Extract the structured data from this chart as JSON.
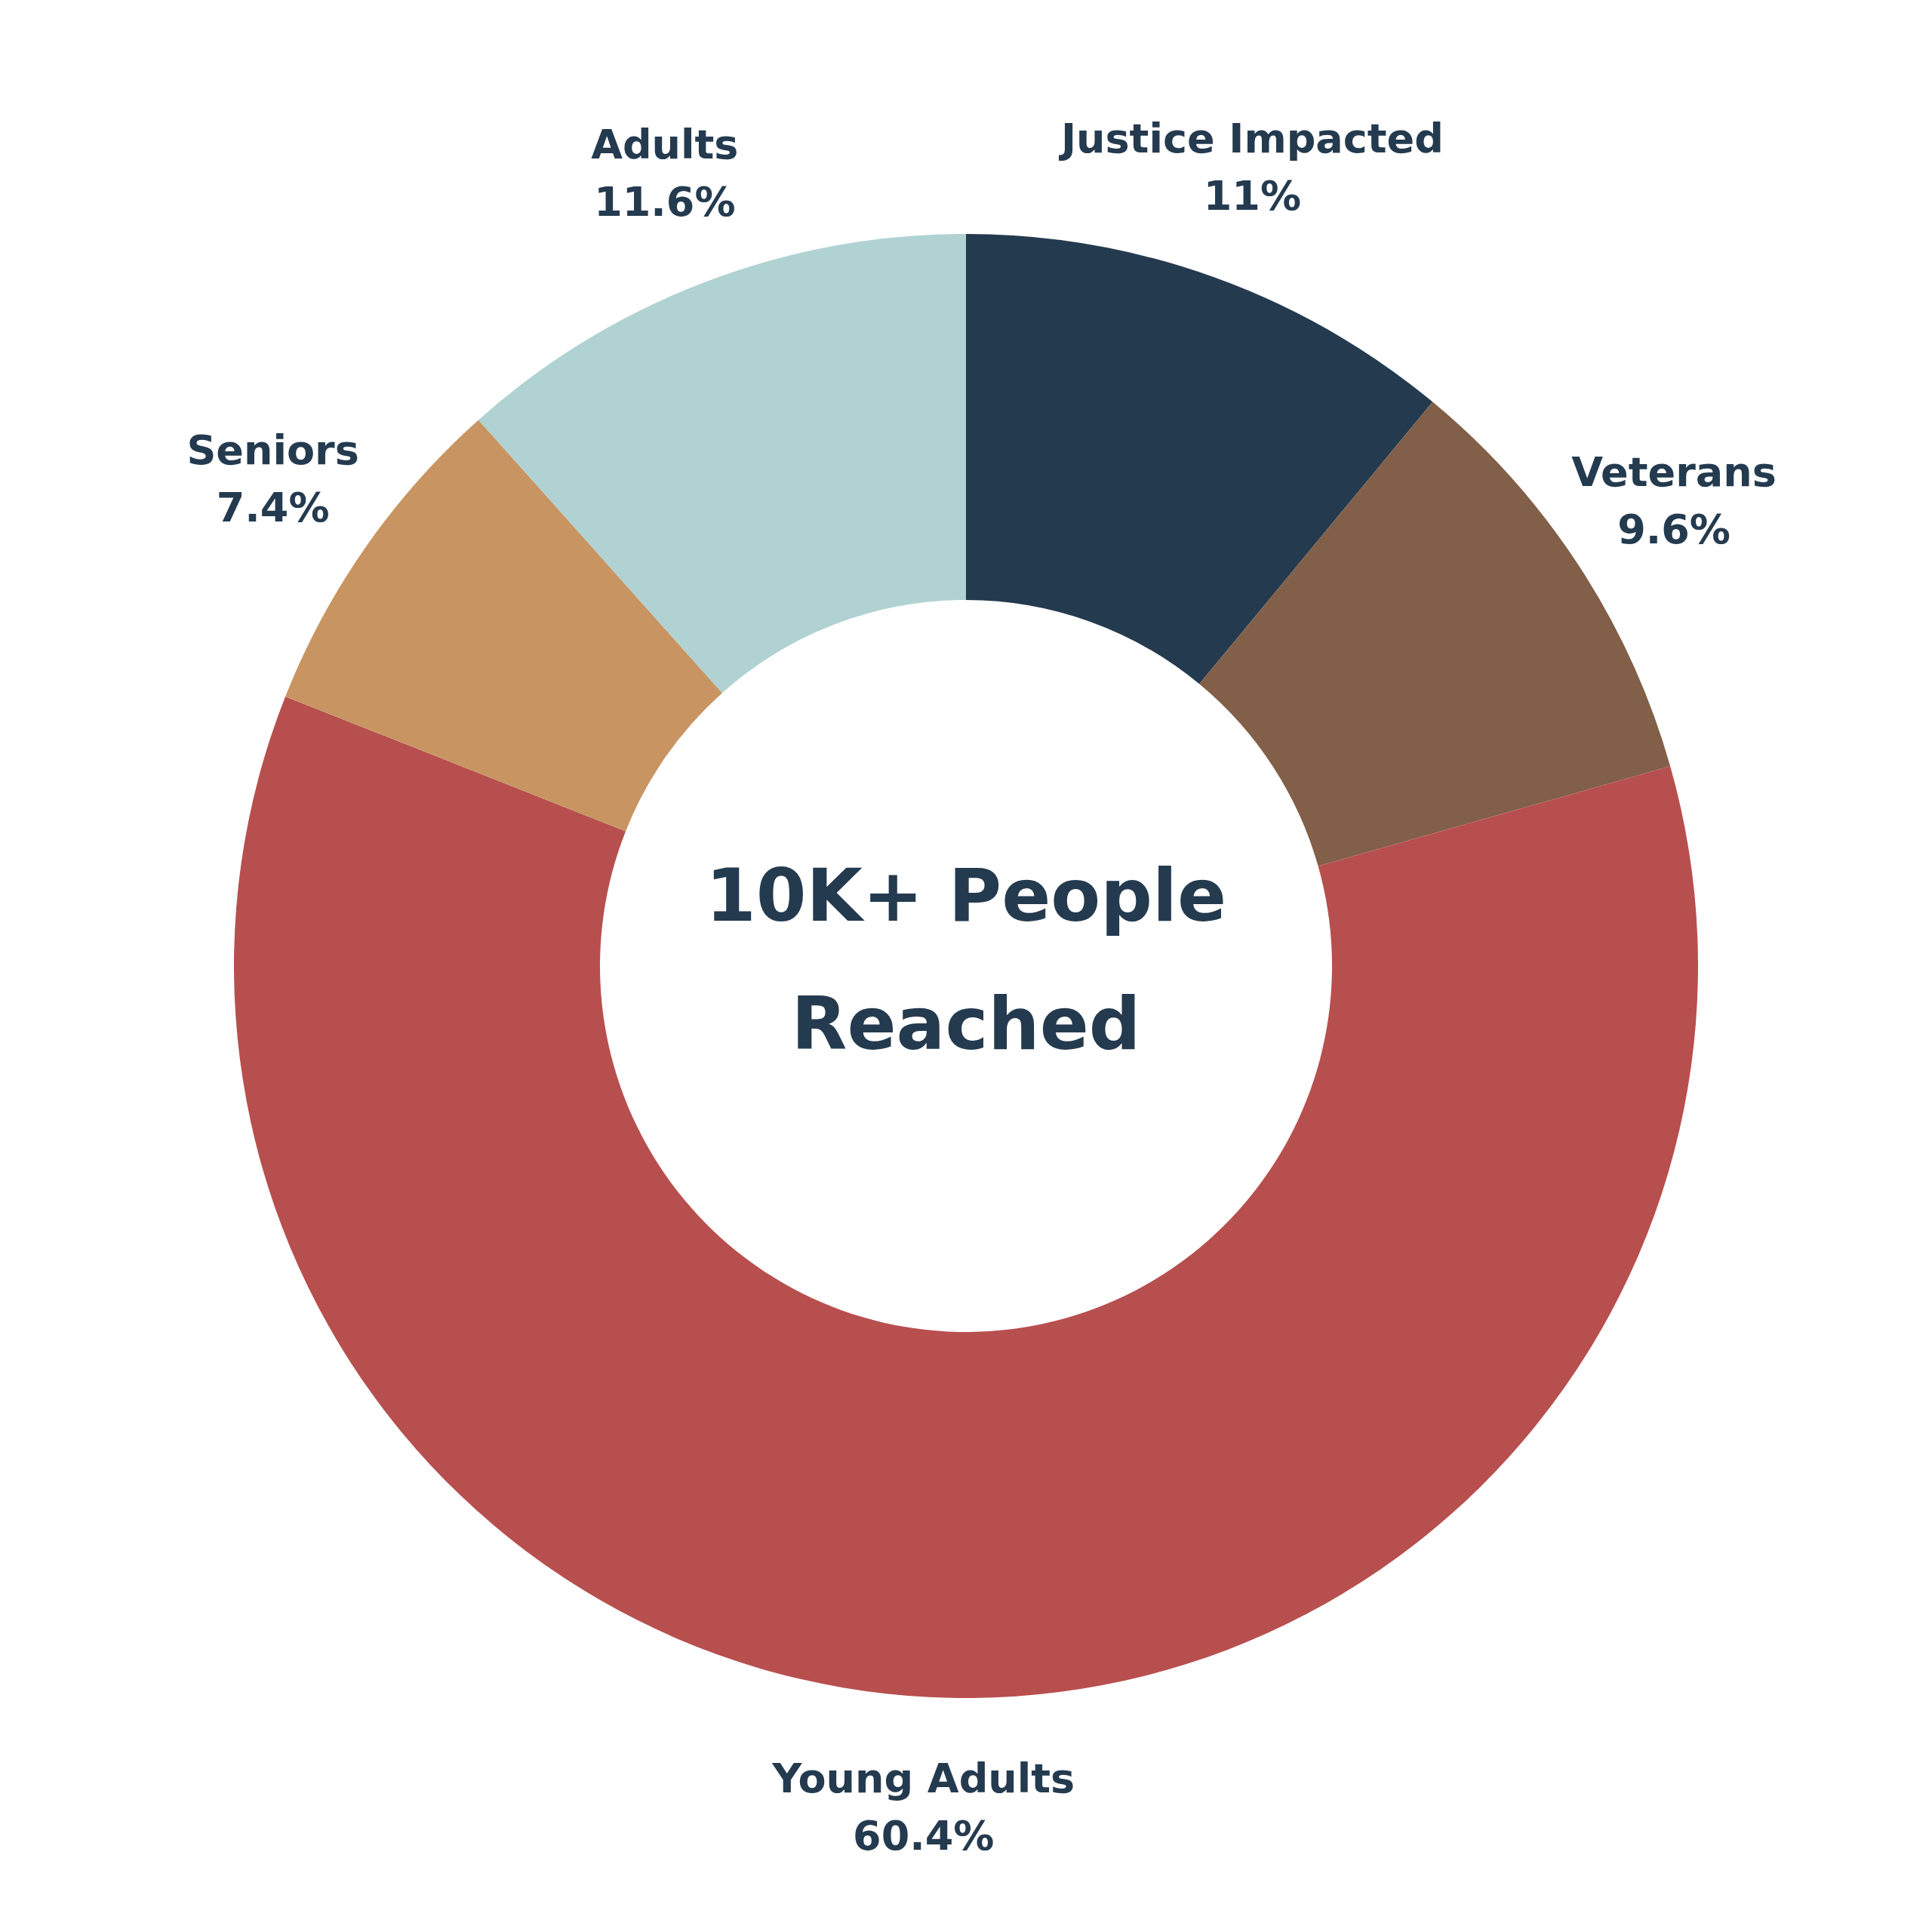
{
  "chart_data": {
    "type": "donut",
    "categories": [
      "Justice Impacted",
      "Veterans",
      "Young Adults",
      "Seniors",
      "Adults"
    ],
    "values": [
      11,
      9.6,
      60.4,
      7.4,
      11.6
    ],
    "colors": [
      "#243a4f",
      "#825f48",
      "#b84f4f",
      "#c89562",
      "#b0d2d2"
    ],
    "value_labels": [
      "11%",
      "9.6%",
      "60.4%",
      "7.4%",
      "11.6%"
    ],
    "annotations": [
      "10K+ People Reached"
    ],
    "legend": false
  }
}
